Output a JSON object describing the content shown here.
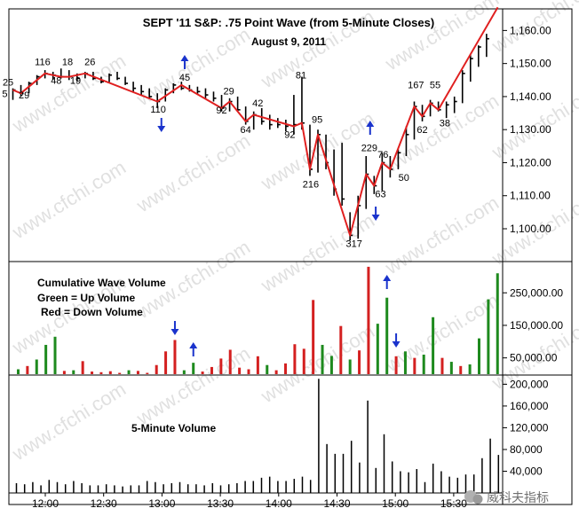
{
  "chart_data": [
    {
      "type": "bar",
      "subtype": "ohlc-with-wave-line",
      "title": "SEPT '11 S&P:  .75 Point Wave (from 5-Minute Closes)",
      "subtitle": "August 9, 2011",
      "yticks": [
        "1,100.00",
        "1,110.00",
        "1,120.00",
        "1,130.00",
        "1,140.00",
        "1,150.00",
        "1,160.00"
      ],
      "ylim": [
        1094,
        1167
      ],
      "grid": false,
      "wave_color": "#e02020",
      "bar_color": "#000000",
      "arrow_color": "#1a33cc",
      "bars": [
        {
          "h": 1142.5,
          "l": 1139.0,
          "c": 1142.0
        },
        {
          "h": 1143.5,
          "l": 1140.0,
          "c": 1141.0
        },
        {
          "h": 1144.5,
          "l": 1141.0,
          "c": 1144.0
        },
        {
          "h": 1146.5,
          "l": 1143.5,
          "c": 1146.0
        },
        {
          "h": 1148.0,
          "l": 1145.5,
          "c": 1147.0
        },
        {
          "h": 1147.5,
          "l": 1145.0,
          "c": 1146.5
        },
        {
          "h": 1148.5,
          "l": 1145.5,
          "c": 1146.0
        },
        {
          "h": 1148.0,
          "l": 1145.0,
          "c": 1146.0
        },
        {
          "h": 1147.0,
          "l": 1144.5,
          "c": 1145.5
        },
        {
          "h": 1147.5,
          "l": 1145.5,
          "c": 1147.0
        },
        {
          "h": 1147.5,
          "l": 1145.0,
          "c": 1145.5
        },
        {
          "h": 1146.0,
          "l": 1144.0,
          "c": 1144.5
        },
        {
          "h": 1147.0,
          "l": 1144.0,
          "c": 1146.5
        },
        {
          "h": 1147.5,
          "l": 1145.0,
          "c": 1145.5
        },
        {
          "h": 1146.0,
          "l": 1143.5,
          "c": 1144.0
        },
        {
          "h": 1144.5,
          "l": 1141.5,
          "c": 1142.5
        },
        {
          "h": 1143.5,
          "l": 1140.5,
          "c": 1141.5
        },
        {
          "h": 1142.5,
          "l": 1139.5,
          "c": 1140.0
        },
        {
          "h": 1141.0,
          "l": 1136.5,
          "c": 1138.5
        },
        {
          "h": 1142.5,
          "l": 1138.5,
          "c": 1142.0
        },
        {
          "h": 1144.0,
          "l": 1141.0,
          "c": 1143.5
        },
        {
          "h": 1144.5,
          "l": 1142.0,
          "c": 1142.5
        },
        {
          "h": 1143.5,
          "l": 1141.5,
          "c": 1142.0
        },
        {
          "h": 1143.0,
          "l": 1140.5,
          "c": 1141.5
        },
        {
          "h": 1142.5,
          "l": 1139.5,
          "c": 1140.5
        },
        {
          "h": 1141.5,
          "l": 1138.5,
          "c": 1139.5
        },
        {
          "h": 1140.5,
          "l": 1135.5,
          "c": 1136.5
        },
        {
          "h": 1139.5,
          "l": 1135.5,
          "c": 1138.5
        },
        {
          "h": 1140.0,
          "l": 1135.5,
          "c": 1136.0
        },
        {
          "h": 1137.0,
          "l": 1131.5,
          "c": 1132.5
        },
        {
          "h": 1135.5,
          "l": 1130.0,
          "c": 1134.5
        },
        {
          "h": 1136.5,
          "l": 1131.5,
          "c": 1132.5
        },
        {
          "h": 1134.5,
          "l": 1130.0,
          "c": 1131.5
        },
        {
          "h": 1133.5,
          "l": 1130.5,
          "c": 1131.5
        },
        {
          "h": 1133.0,
          "l": 1129.5,
          "c": 1131.0
        },
        {
          "h": 1140.5,
          "l": 1128.5,
          "c": 1131.5
        },
        {
          "h": 1146.0,
          "l": 1130.0,
          "c": 1132.0
        },
        {
          "h": 1131.5,
          "l": 1116.0,
          "c": 1118.0
        },
        {
          "h": 1130.0,
          "l": 1117.0,
          "c": 1128.5
        },
        {
          "h": 1128.5,
          "l": 1118.0,
          "c": 1120.0
        },
        {
          "h": 1124.0,
          "l": 1110.0,
          "c": 1112.0
        },
        {
          "h": 1126.0,
          "l": 1107.0,
          "c": 1109.0
        },
        {
          "h": 1105.0,
          "l": 1096.5,
          "c": 1098.0
        },
        {
          "h": 1110.0,
          "l": 1097.0,
          "c": 1107.0
        },
        {
          "h": 1122.0,
          "l": 1106.0,
          "c": 1116.5
        },
        {
          "h": 1116.0,
          "l": 1110.5,
          "c": 1113.0
        },
        {
          "h": 1123.0,
          "l": 1111.5,
          "c": 1120.0
        },
        {
          "h": 1122.0,
          "l": 1115.5,
          "c": 1118.0
        },
        {
          "h": 1124.0,
          "l": 1118.0,
          "c": 1123.0
        },
        {
          "h": 1131.0,
          "l": 1122.0,
          "c": 1128.5
        },
        {
          "h": 1138.5,
          "l": 1127.0,
          "c": 1137.0
        },
        {
          "h": 1137.5,
          "l": 1132.5,
          "c": 1134.0
        },
        {
          "h": 1139.0,
          "l": 1134.0,
          "c": 1138.0
        },
        {
          "h": 1138.5,
          "l": 1135.5,
          "c": 1136.0
        },
        {
          "h": 1138.5,
          "l": 1133.5,
          "c": 1137.5
        },
        {
          "h": 1140.0,
          "l": 1135.0,
          "c": 1138.5
        },
        {
          "h": 1148.0,
          "l": 1138.0,
          "c": 1147.0
        },
        {
          "h": 1152.5,
          "l": 1144.5,
          "c": 1151.5
        },
        {
          "h": 1155.5,
          "l": 1149.0,
          "c": 1155.0
        },
        {
          "h": 1159.0,
          "l": 1152.0,
          "c": 1157.5
        }
      ],
      "wave_points": [
        {
          "i": 0,
          "y": 1142.0
        },
        {
          "i": 1,
          "y": 1141.0
        },
        {
          "i": 4,
          "y": 1147.0
        },
        {
          "i": 6,
          "y": 1146.0
        },
        {
          "i": 7,
          "y": 1146.0
        },
        {
          "i": 9,
          "y": 1147.0
        },
        {
          "i": 18,
          "y": 1138.5
        },
        {
          "i": 21,
          "y": 1143.5
        },
        {
          "i": 26,
          "y": 1136.5
        },
        {
          "i": 27,
          "y": 1138.5
        },
        {
          "i": 29,
          "y": 1132.5
        },
        {
          "i": 30,
          "y": 1134.5
        },
        {
          "i": 35,
          "y": 1131.0
        },
        {
          "i": 36,
          "y": 1132.0
        },
        {
          "i": 37,
          "y": 1118.0
        },
        {
          "i": 38,
          "y": 1128.5
        },
        {
          "i": 42,
          "y": 1098.0
        },
        {
          "i": 44,
          "y": 1116.5
        },
        {
          "i": 45,
          "y": 1113.0
        },
        {
          "i": 46,
          "y": 1120.0
        },
        {
          "i": 47,
          "y": 1118.0
        },
        {
          "i": 50,
          "y": 1137.0
        },
        {
          "i": 51,
          "y": 1134.0
        },
        {
          "i": 52,
          "y": 1138.0
        },
        {
          "i": 53,
          "y": 1136.0
        },
        {
          "i": 60.4,
          "y": 1167.0
        }
      ],
      "wave_labels": [
        {
          "i": -0.6,
          "y": 1143.3,
          "text": "25"
        },
        {
          "i": -1.0,
          "y": 1139.8,
          "text": "5"
        },
        {
          "i": 1.4,
          "y": 1139.4,
          "text": "29"
        },
        {
          "i": 3.7,
          "y": 1149.5,
          "text": "116"
        },
        {
          "i": 5.4,
          "y": 1143.9,
          "text": "48"
        },
        {
          "i": 6.8,
          "y": 1149.5,
          "text": "18"
        },
        {
          "i": 7.8,
          "y": 1143.9,
          "text": "19"
        },
        {
          "i": 9.6,
          "y": 1149.5,
          "text": "26"
        },
        {
          "i": 18.1,
          "y": 1135.1,
          "text": "110"
        },
        {
          "i": 21.4,
          "y": 1144.8,
          "text": "45"
        },
        {
          "i": 26.9,
          "y": 1140.6,
          "text": "29"
        },
        {
          "i": 26.0,
          "y": 1134.9,
          "text": "92"
        },
        {
          "i": 29.0,
          "y": 1129.0,
          "text": "64"
        },
        {
          "i": 30.5,
          "y": 1137.0,
          "text": "42"
        },
        {
          "i": 34.5,
          "y": 1127.5,
          "text": "92"
        },
        {
          "i": 35.9,
          "y": 1145.5,
          "text": "81"
        },
        {
          "i": 37.9,
          "y": 1132.0,
          "text": "95"
        },
        {
          "i": 37.1,
          "y": 1112.5,
          "text": "216"
        },
        {
          "i": 42.5,
          "y": 1094.5,
          "text": "317"
        },
        {
          "i": 44.4,
          "y": 1123.5,
          "text": "229"
        },
        {
          "i": 45.8,
          "y": 1109.5,
          "text": "63"
        },
        {
          "i": 46.1,
          "y": 1121.5,
          "text": "76"
        },
        {
          "i": 48.7,
          "y": 1114.5,
          "text": "50"
        },
        {
          "i": 50.2,
          "y": 1142.5,
          "text": "167"
        },
        {
          "i": 51.0,
          "y": 1129.0,
          "text": "62"
        },
        {
          "i": 52.6,
          "y": 1142.5,
          "text": "55"
        },
        {
          "i": 53.8,
          "y": 1131.0,
          "text": "38"
        }
      ],
      "arrows": [
        {
          "i": 21.4,
          "dir": "up"
        },
        {
          "i": 18.5,
          "dir": "down"
        },
        {
          "i": 44.5,
          "dir": "up"
        },
        {
          "i": 45.2,
          "dir": "down"
        }
      ]
    },
    {
      "type": "bar",
      "subtype": "cumulative-wave-volume",
      "legend_title": "Cumulative Wave Volume",
      "legend_lines": [
        "Green = Up Volume",
        "Red = Down Volume"
      ],
      "legend_placement": "top-left",
      "yticks": [
        "50,000.00",
        "150,000.00",
        "250,000.00"
      ],
      "ylim": [
        0,
        345000
      ],
      "up_color": "#1e8a1e",
      "down_color": "#d42020",
      "bars": [
        {
          "v": 15000,
          "c": "g"
        },
        {
          "v": 25000,
          "c": "r"
        },
        {
          "v": 45000,
          "c": "g"
        },
        {
          "v": 90000,
          "c": "g"
        },
        {
          "v": 115000,
          "c": "g"
        },
        {
          "v": 10000,
          "c": "r"
        },
        {
          "v": 12000,
          "c": "g"
        },
        {
          "v": 40000,
          "c": "r"
        },
        {
          "v": 8000,
          "c": "r"
        },
        {
          "v": 6000,
          "c": "r"
        },
        {
          "v": 9000,
          "c": "r"
        },
        {
          "v": 4000,
          "c": "r"
        },
        {
          "v": 12000,
          "c": "g"
        },
        {
          "v": 10000,
          "c": "r"
        },
        {
          "v": 4000,
          "c": "r"
        },
        {
          "v": 28000,
          "c": "r"
        },
        {
          "v": 70000,
          "c": "r"
        },
        {
          "v": 105000,
          "c": "r"
        },
        {
          "v": 12000,
          "c": "g"
        },
        {
          "v": 35000,
          "c": "g"
        },
        {
          "v": 8000,
          "c": "r"
        },
        {
          "v": 22000,
          "c": "r"
        },
        {
          "v": 48000,
          "c": "r"
        },
        {
          "v": 75000,
          "c": "r"
        },
        {
          "v": 20000,
          "c": "r"
        },
        {
          "v": 15000,
          "c": "r"
        },
        {
          "v": 55000,
          "c": "r"
        },
        {
          "v": 28000,
          "c": "g"
        },
        {
          "v": 12000,
          "c": "r"
        },
        {
          "v": 33000,
          "c": "r"
        },
        {
          "v": 92000,
          "c": "r"
        },
        {
          "v": 78000,
          "c": "r"
        },
        {
          "v": 228000,
          "c": "r"
        },
        {
          "v": 90000,
          "c": "g"
        },
        {
          "v": 56000,
          "c": "g"
        },
        {
          "v": 148000,
          "c": "r"
        },
        {
          "v": 45000,
          "c": "g"
        },
        {
          "v": 73000,
          "c": "r"
        },
        {
          "v": 330000,
          "c": "r"
        },
        {
          "v": 155000,
          "c": "g"
        },
        {
          "v": 235000,
          "c": "g"
        },
        {
          "v": 55000,
          "c": "r"
        },
        {
          "v": 70000,
          "c": "g"
        },
        {
          "v": 50000,
          "c": "r"
        },
        {
          "v": 60000,
          "c": "g"
        },
        {
          "v": 175000,
          "c": "g"
        },
        {
          "v": 50000,
          "c": "r"
        },
        {
          "v": 38000,
          "c": "g"
        },
        {
          "v": 25000,
          "c": "r"
        },
        {
          "v": 30000,
          "c": "g"
        },
        {
          "v": 110000,
          "c": "g"
        },
        {
          "v": 230000,
          "c": "g"
        },
        {
          "v": 310000,
          "c": "g"
        }
      ],
      "arrows": [
        {
          "bar": 17,
          "dir": "down"
        },
        {
          "bar": 19,
          "dir": "up"
        },
        {
          "bar": 40,
          "dir": "up"
        },
        {
          "bar": 41,
          "dir": "down"
        }
      ]
    },
    {
      "type": "bar",
      "subtype": "five-minute-volume",
      "label": "5-Minute Volume",
      "yticks": [
        "40,000",
        "80,000",
        "120,000",
        "160,000",
        "200,000"
      ],
      "ylim": [
        0,
        210000
      ],
      "xticks": [
        "12:00",
        "12:30",
        "13:00",
        "13:30",
        "14:00",
        "14:30",
        "15:00",
        "15:30"
      ],
      "volumes": [
        18000,
        16000,
        20000,
        14000,
        24000,
        20000,
        16000,
        22000,
        18000,
        14000,
        14000,
        16000,
        14000,
        12000,
        14000,
        14000,
        22000,
        20000,
        16000,
        18000,
        20000,
        16000,
        16000,
        14000,
        18000,
        14000,
        16000,
        18000,
        22000,
        22000,
        28000,
        30000,
        22000,
        22000,
        26000,
        30000,
        24000,
        210000,
        90000,
        72000,
        72000,
        96000,
        56000,
        170000,
        46000,
        108000,
        58000,
        40000,
        38000,
        44000,
        20000,
        54000,
        40000,
        30000,
        28000,
        34000,
        34000,
        64000,
        100000,
        70000
      ]
    }
  ],
  "watermark": {
    "text": "www.cfchi.com"
  },
  "footer": {
    "badge": "威科夫指标",
    "badge_icon": "wechat-icon"
  }
}
